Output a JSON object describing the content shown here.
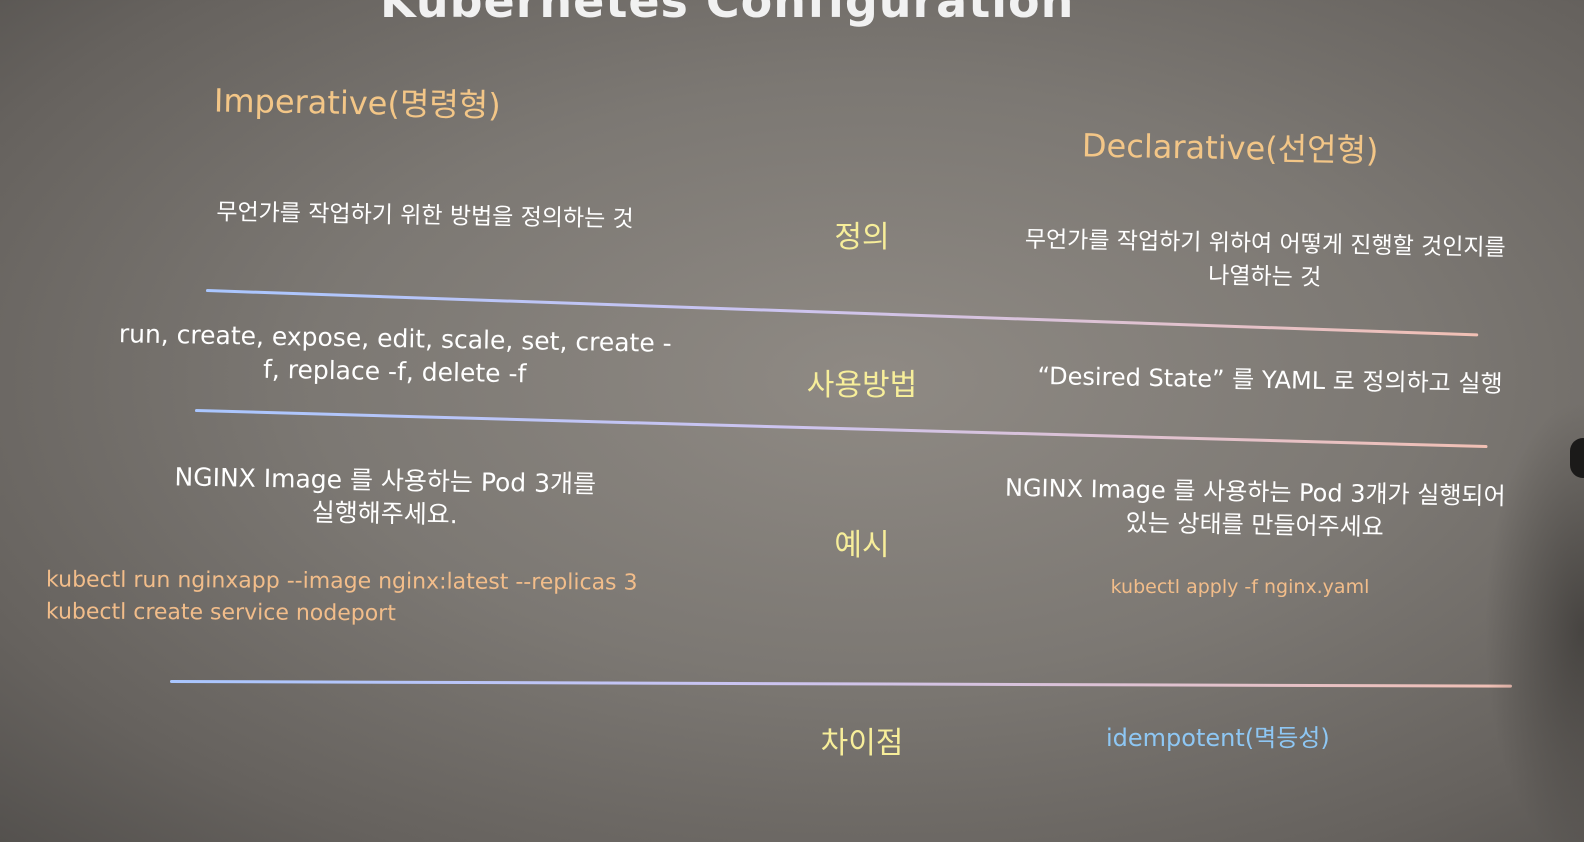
{
  "slide": {
    "title": "Kubernetes Configuration",
    "imperative_heading": "Imperative(명령형)",
    "declarative_heading": "Declarative(선언형)"
  },
  "rows": {
    "definition": {
      "label": "정의",
      "imperative": "무언가를 작업하기 위한 방법을 정의하는 것",
      "declarative_line1": "무언가를 작업하기 위하여 어떻게 진행할 것인지를",
      "declarative_line2": "나열하는 것"
    },
    "usage": {
      "label": "사용방법",
      "imperative_line1": "run, create, expose, edit, scale, set, create -",
      "imperative_line2": "f, replace -f, delete -f",
      "declarative": "“Desired State” 를 YAML 로 정의하고 실행"
    },
    "example": {
      "label": "예시",
      "imperative_line1": "NGINX Image 를 사용하는 Pod 3개를",
      "imperative_line2": "실행해주세요.",
      "imperative_code1": "kubectl run nginxapp --image nginx:latest --replicas 3",
      "imperative_code2": "kubectl create service nodeport",
      "declarative_line1": "NGINX Image 를 사용하는 Pod 3개가 실행되어",
      "declarative_line2": "있는 상태를 만들어주세요",
      "declarative_code": "kubectl apply -f nginx.yaml"
    },
    "difference": {
      "label": "차이점",
      "declarative": "idempotent(멱등성)"
    }
  },
  "colors": {
    "heading": "#f3c687",
    "label": "#f7ee9a",
    "code": "#f2bd8a",
    "accent_blue": "#8ec7f4",
    "rule_start": "#a9c6ff",
    "rule_end": "#f1c0b4"
  }
}
